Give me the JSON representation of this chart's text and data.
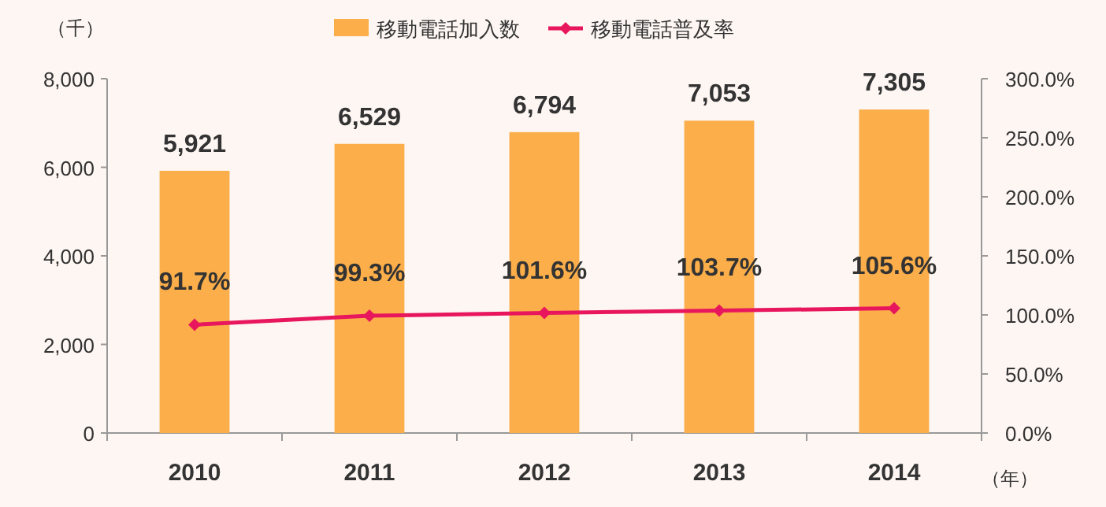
{
  "chart_data": {
    "type": "bar",
    "ylabel": "（千）",
    "xlabel": "（年）",
    "categories": [
      "2010",
      "2011",
      "2012",
      "2013",
      "2014"
    ],
    "series": [
      {
        "name": "移動電話加入数",
        "color": "#fbae4a",
        "values": [
          5921,
          6529,
          6794,
          7053,
          7305
        ],
        "value_labels": [
          "5,921",
          "6,529",
          "6,794",
          "7,053",
          "7,305"
        ]
      },
      {
        "name": "移動電話普及率",
        "type": "line",
        "axis": "y2",
        "color": "#e8175d",
        "marker": "diamond",
        "values": [
          91.7,
          99.3,
          101.6,
          103.7,
          105.6
        ],
        "value_labels": [
          "91.7%",
          "99.3%",
          "101.6%",
          "103.7%",
          "105.6%"
        ]
      }
    ],
    "ylim": [
      0,
      8000
    ],
    "yticks": [
      {
        "value": 0,
        "label": "0"
      },
      {
        "value": 2000,
        "label": "2,000"
      },
      {
        "value": 4000,
        "label": "4,000"
      },
      {
        "value": 6000,
        "label": "6,000"
      },
      {
        "value": 8000,
        "label": "8,000"
      }
    ],
    "y2lim": [
      0,
      300
    ],
    "y2ticks": [
      {
        "value": 0,
        "label": "0.0%"
      },
      {
        "value": 50,
        "label": "50.0%"
      },
      {
        "value": 100,
        "label": "100.0%"
      },
      {
        "value": 150,
        "label": "150.0%"
      },
      {
        "value": 200,
        "label": "200.0%"
      },
      {
        "value": 250,
        "label": "250.0%"
      },
      {
        "value": 300,
        "label": "300.0%"
      }
    ],
    "legend": "top",
    "grid": false
  }
}
